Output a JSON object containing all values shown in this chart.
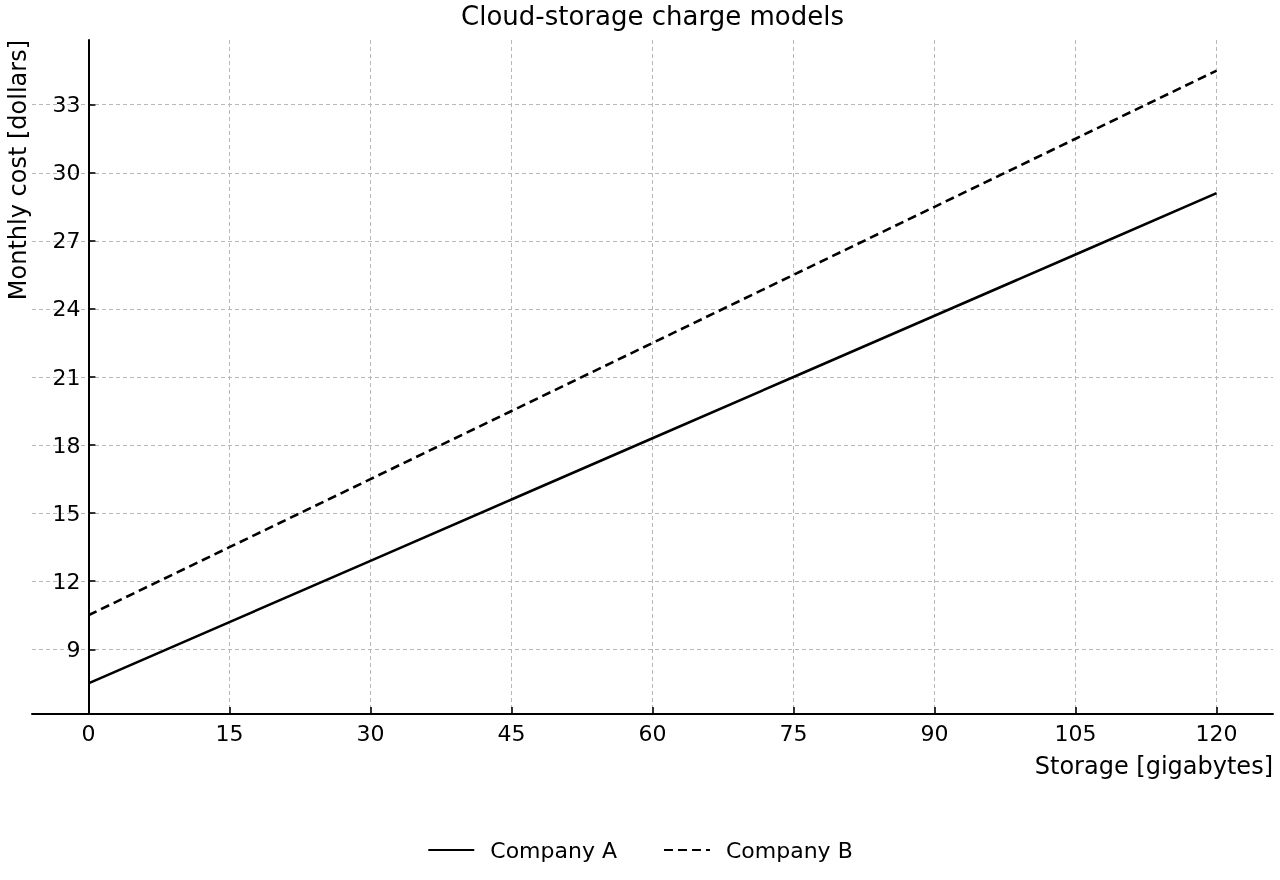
{
  "chart_data": {
    "type": "line",
    "title": "Cloud-storage charge models",
    "xlabel": "Storage [gigabytes]",
    "ylabel": "Monthly cost [dollars]",
    "x": [
      0,
      15,
      30,
      45,
      60,
      75,
      90,
      105,
      120
    ],
    "series": [
      {
        "name": "Company A",
        "color": "#000000",
        "line_style": "solid",
        "values": [
          7.5,
          10.2,
          12.9,
          15.6,
          18.3,
          21.0,
          23.7,
          26.4,
          29.1
        ]
      },
      {
        "name": "Company B",
        "color": "#000000",
        "line_style": "dashed",
        "values": [
          10.5,
          13.5,
          16.5,
          19.5,
          22.5,
          25.5,
          28.5,
          31.5,
          34.5
        ]
      }
    ],
    "xlim": [
      -6,
      126
    ],
    "ylim": [
      6.15,
      35.85
    ],
    "xticks": [
      0,
      15,
      30,
      45,
      60,
      75,
      90,
      105,
      120
    ],
    "yticks": [
      9,
      12,
      15,
      18,
      21,
      24,
      27,
      30,
      33
    ],
    "grid": true,
    "legend": "bottom"
  }
}
